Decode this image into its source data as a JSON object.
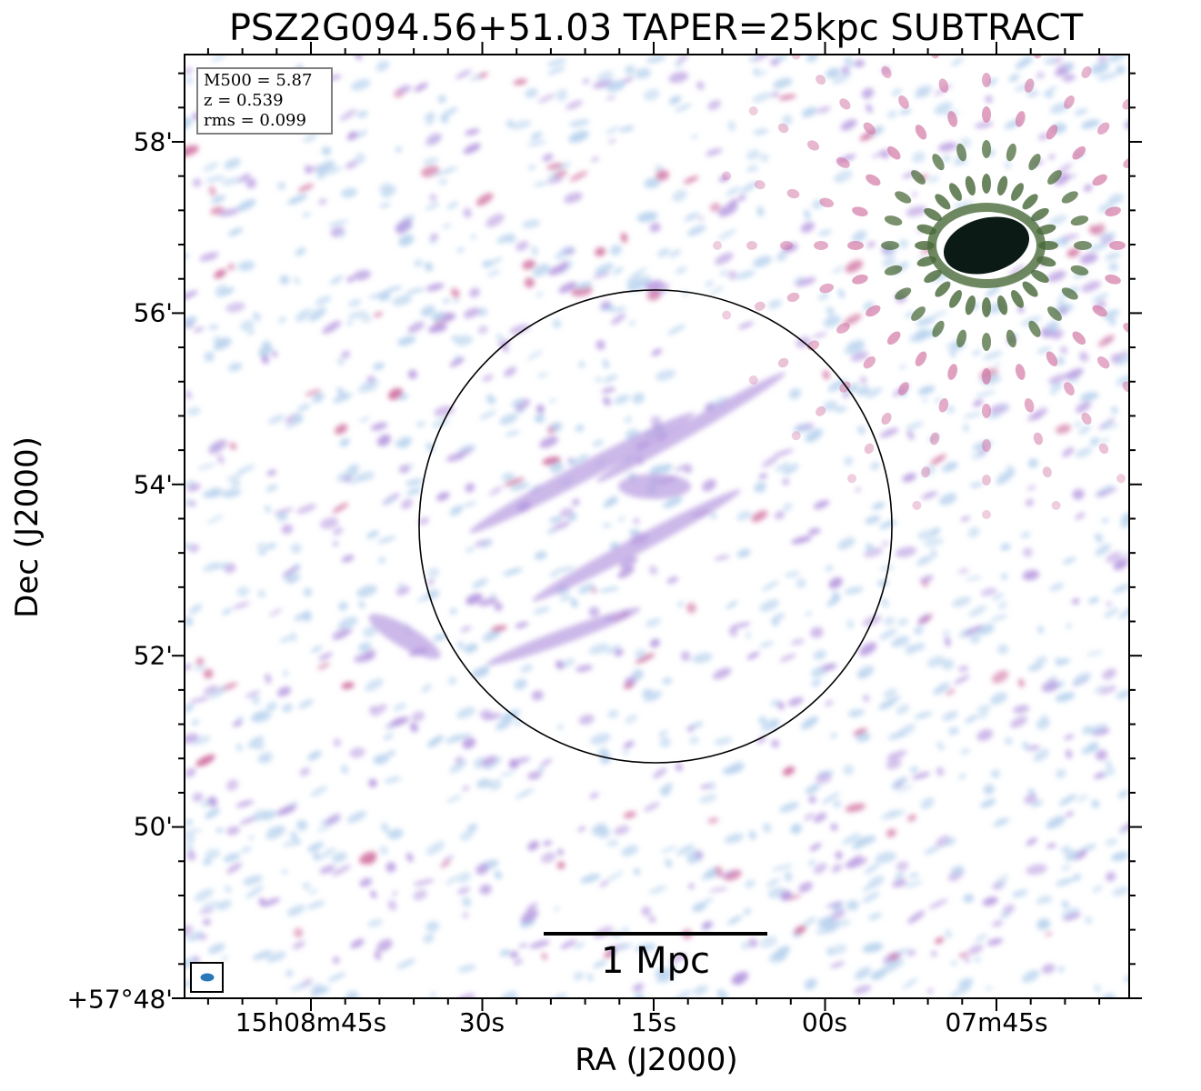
{
  "title": "PSZ2G094.56+51.03 TAPER=25kpc SUBTRACT",
  "axes": {
    "xlabel": "RA (J2000)",
    "ylabel": "Dec (J2000)",
    "x_ticks": [
      {
        "label": "15h08m45s"
      },
      {
        "label": "30s"
      },
      {
        "label": "15s"
      },
      {
        "label": "00s"
      },
      {
        "label": "07m45s"
      }
    ],
    "y_ticks": [
      {
        "label": "58'"
      },
      {
        "label": "56'"
      },
      {
        "label": "54'"
      },
      {
        "label": "52'"
      },
      {
        "label": "50'"
      },
      {
        "label": "+57°48'"
      }
    ]
  },
  "info": {
    "mass": "M500 = 5.87",
    "redshift": "z = 0.539",
    "rms": "rms = 0.099"
  },
  "scale_bar": {
    "label": "1 Mpc"
  },
  "colors": {
    "faint_emission": "#b9d3ee",
    "medium_emission": "#b79ae0",
    "bright_emission": "#d070a0",
    "peak_emission": "#4a6a3a",
    "circle": "#000000",
    "beam": "#2a78b8"
  }
}
